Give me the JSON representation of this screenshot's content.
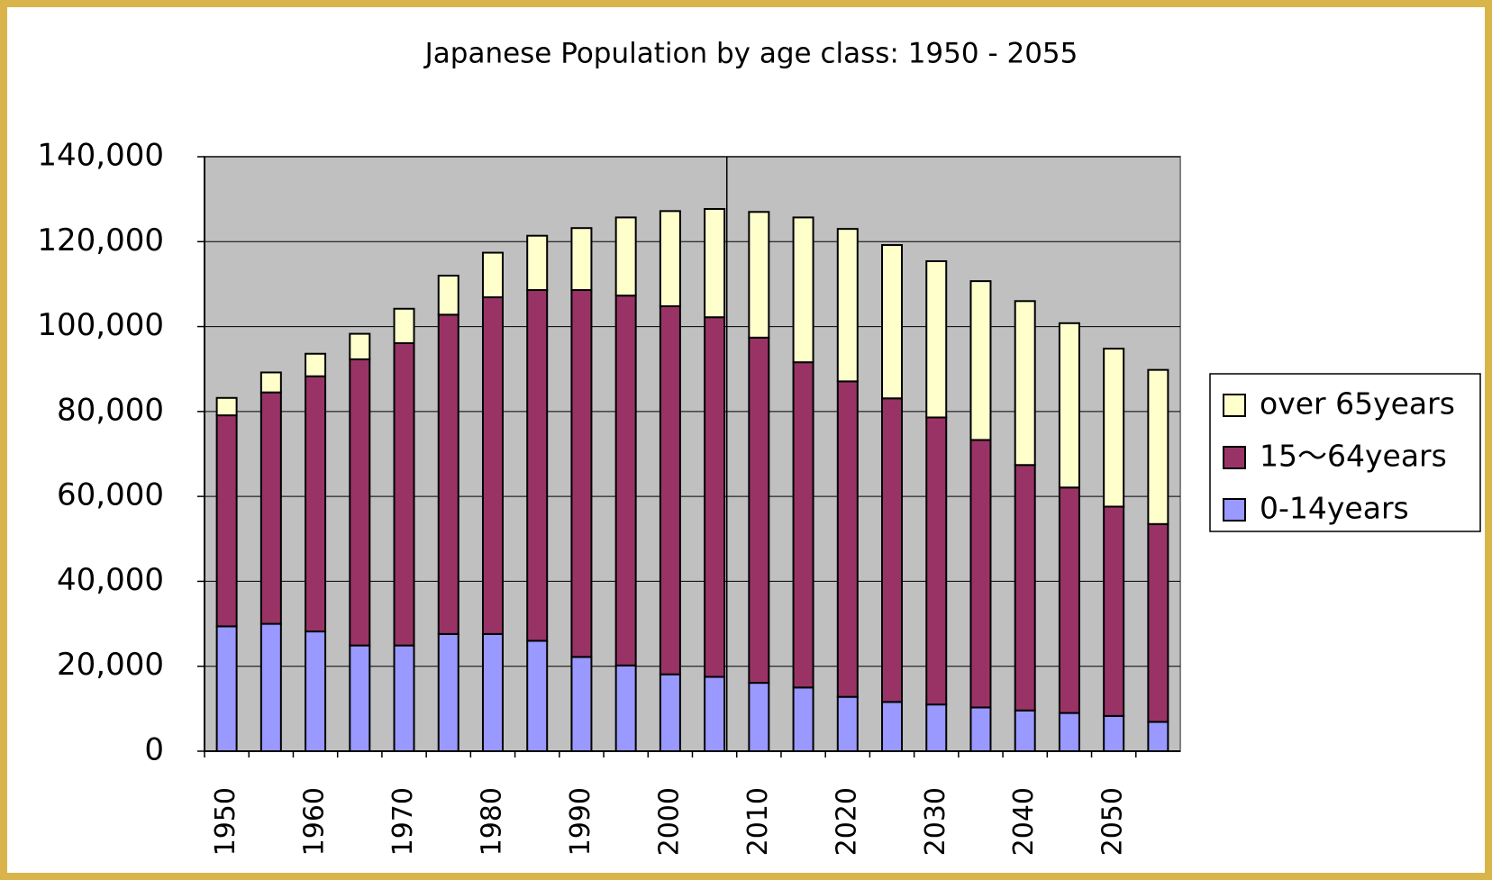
{
  "chart_data": {
    "type": "stacked_bar",
    "title": "Japanese Population by age class: 1950 - 2055",
    "categories": [
      "1950",
      null,
      "1960",
      null,
      "1970",
      null,
      "1980",
      null,
      "1990",
      null,
      "2000",
      null,
      "2010",
      null,
      "2020",
      null,
      "2030",
      null,
      "2040",
      null,
      "2050",
      null
    ],
    "series": [
      {
        "name": "0-14years",
        "color": "#9999ff",
        "values": [
          29400,
          30000,
          28200,
          24900,
          24900,
          27600,
          27600,
          26000,
          22200,
          20200,
          18100,
          17500,
          16100,
          15000,
          12800,
          11600,
          11000,
          10300,
          9600,
          9000,
          8300,
          6900
        ]
      },
      {
        "name": "15～64years",
        "color": "#993366",
        "values": [
          49700,
          54500,
          60100,
          67400,
          71200,
          75200,
          79300,
          82600,
          86400,
          87100,
          86700,
          84700,
          81300,
          76600,
          74300,
          71500,
          67600,
          63000,
          57800,
          53100,
          49300,
          46600
        ]
      },
      {
        "name": "over 65years",
        "color": "#ffffcc",
        "values": [
          4100,
          4700,
          5300,
          6000,
          8100,
          9200,
          10500,
          12800,
          14600,
          18400,
          22400,
          25500,
          29600,
          34100,
          35900,
          36100,
          36800,
          37400,
          38600,
          38700,
          37200,
          36300
        ]
      }
    ],
    "ylim": [
      0,
      140000
    ],
    "yticks": [
      0,
      {
        "value": 20000,
        "label": "20,000"
      },
      {
        "value": 40000,
        "label": "40,000"
      },
      {
        "value": 60000,
        "label": "60,000"
      },
      {
        "value": 80000,
        "label": "80,000"
      },
      {
        "value": 100000,
        "label": "100,000"
      },
      {
        "value": 120000,
        "label": "120,000"
      },
      {
        "value": 140000,
        "label": "140,000"
      }
    ],
    "grid": true,
    "legend": "right",
    "plot_background": "#c0c0c0"
  }
}
